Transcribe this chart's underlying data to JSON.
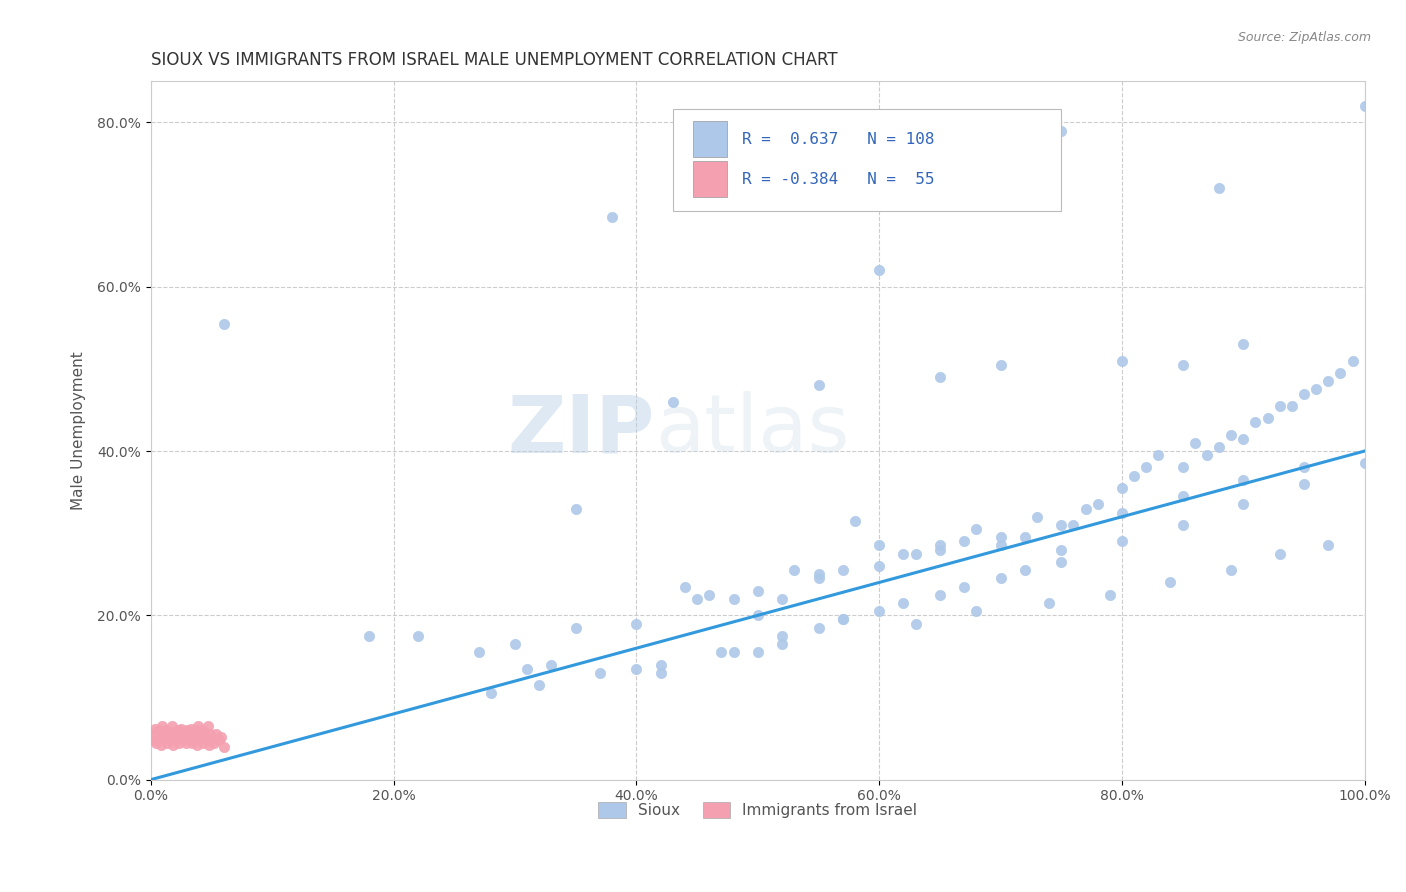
{
  "title": "SIOUX VS IMMIGRANTS FROM ISRAEL MALE UNEMPLOYMENT CORRELATION CHART",
  "source": "Source: ZipAtlas.com",
  "ylabel": "Male Unemployment",
  "xlim": [
    0.0,
    1.0
  ],
  "ylim": [
    0.0,
    0.85
  ],
  "xticks": [
    0.0,
    0.2,
    0.4,
    0.6,
    0.8,
    1.0
  ],
  "xtick_labels": [
    "0.0%",
    "20.0%",
    "40.0%",
    "60.0%",
    "80.0%",
    "100.0%"
  ],
  "yticks": [
    0.0,
    0.2,
    0.4,
    0.6,
    0.8
  ],
  "ytick_labels": [
    "0.0%",
    "20.0%",
    "40.0%",
    "60.0%",
    "80.0%"
  ],
  "color_sioux": "#adc8e8",
  "color_israel": "#f4a0b0",
  "trendline_color": "#3399dd",
  "background_color": "#ffffff",
  "watermark_zip": "ZIP",
  "watermark_atlas": "atlas",
  "sioux_x": [
    0.38,
    0.06,
    0.18,
    0.22,
    0.27,
    0.31,
    0.33,
    0.35,
    0.4,
    0.42,
    0.44,
    0.46,
    0.48,
    0.5,
    0.52,
    0.53,
    0.55,
    0.57,
    0.58,
    0.6,
    0.62,
    0.63,
    0.65,
    0.67,
    0.68,
    0.7,
    0.72,
    0.73,
    0.75,
    0.76,
    0.77,
    0.78,
    0.8,
    0.81,
    0.82,
    0.83,
    0.85,
    0.86,
    0.87,
    0.88,
    0.89,
    0.9,
    0.91,
    0.92,
    0.93,
    0.94,
    0.95,
    0.96,
    0.97,
    0.98,
    0.99,
    1.0,
    0.75,
    0.88,
    0.43,
    0.55,
    0.6,
    0.65,
    0.7,
    0.8,
    0.85,
    0.9,
    0.48,
    0.52,
    0.57,
    0.63,
    0.68,
    0.74,
    0.79,
    0.84,
    0.89,
    0.93,
    0.97,
    0.3,
    0.35,
    0.4,
    0.45,
    0.5,
    0.55,
    0.6,
    0.65,
    0.7,
    0.75,
    0.8,
    0.85,
    0.9,
    0.95,
    0.5,
    0.55,
    0.6,
    0.65,
    0.7,
    0.75,
    0.8,
    0.85,
    0.9,
    0.95,
    1.0,
    0.28,
    0.32,
    0.37,
    0.42,
    0.47,
    0.52,
    0.57,
    0.62,
    0.67,
    0.72
  ],
  "sioux_y": [
    0.685,
    0.555,
    0.175,
    0.175,
    0.155,
    0.135,
    0.14,
    0.33,
    0.135,
    0.13,
    0.235,
    0.225,
    0.22,
    0.2,
    0.22,
    0.255,
    0.245,
    0.255,
    0.315,
    0.285,
    0.275,
    0.275,
    0.285,
    0.29,
    0.305,
    0.285,
    0.295,
    0.32,
    0.28,
    0.31,
    0.33,
    0.335,
    0.355,
    0.37,
    0.38,
    0.395,
    0.38,
    0.41,
    0.395,
    0.405,
    0.42,
    0.415,
    0.435,
    0.44,
    0.455,
    0.455,
    0.47,
    0.475,
    0.485,
    0.495,
    0.51,
    0.82,
    0.79,
    0.72,
    0.46,
    0.48,
    0.62,
    0.49,
    0.505,
    0.51,
    0.505,
    0.53,
    0.155,
    0.165,
    0.195,
    0.19,
    0.205,
    0.215,
    0.225,
    0.24,
    0.255,
    0.275,
    0.285,
    0.165,
    0.185,
    0.19,
    0.22,
    0.23,
    0.25,
    0.26,
    0.28,
    0.295,
    0.31,
    0.325,
    0.345,
    0.365,
    0.38,
    0.155,
    0.185,
    0.205,
    0.225,
    0.245,
    0.265,
    0.29,
    0.31,
    0.335,
    0.36,
    0.385,
    0.105,
    0.115,
    0.13,
    0.14,
    0.155,
    0.175,
    0.195,
    0.215,
    0.235,
    0.255
  ],
  "israel_x": [
    0.001,
    0.002,
    0.003,
    0.004,
    0.005,
    0.006,
    0.007,
    0.008,
    0.009,
    0.01,
    0.011,
    0.012,
    0.013,
    0.014,
    0.015,
    0.016,
    0.017,
    0.018,
    0.019,
    0.02,
    0.021,
    0.022,
    0.023,
    0.024,
    0.025,
    0.026,
    0.027,
    0.028,
    0.029,
    0.03,
    0.031,
    0.032,
    0.033,
    0.034,
    0.035,
    0.036,
    0.037,
    0.038,
    0.039,
    0.04,
    0.041,
    0.042,
    0.043,
    0.044,
    0.045,
    0.046,
    0.047,
    0.048,
    0.049,
    0.05,
    0.052,
    0.054,
    0.056,
    0.058,
    0.06
  ],
  "israel_y": [
    0.055,
    0.048,
    0.062,
    0.045,
    0.058,
    0.052,
    0.06,
    0.042,
    0.065,
    0.05,
    0.055,
    0.06,
    0.045,
    0.058,
    0.052,
    0.048,
    0.065,
    0.042,
    0.058,
    0.055,
    0.05,
    0.06,
    0.045,
    0.055,
    0.062,
    0.048,
    0.052,
    0.058,
    0.045,
    0.06,
    0.055,
    0.048,
    0.062,
    0.045,
    0.058,
    0.052,
    0.06,
    0.042,
    0.065,
    0.05,
    0.055,
    0.06,
    0.045,
    0.058,
    0.052,
    0.048,
    0.065,
    0.042,
    0.055,
    0.05,
    0.045,
    0.055,
    0.048,
    0.052,
    0.04
  ],
  "trend_x": [
    0.0,
    1.0
  ],
  "trend_y": [
    0.0,
    0.4
  ]
}
